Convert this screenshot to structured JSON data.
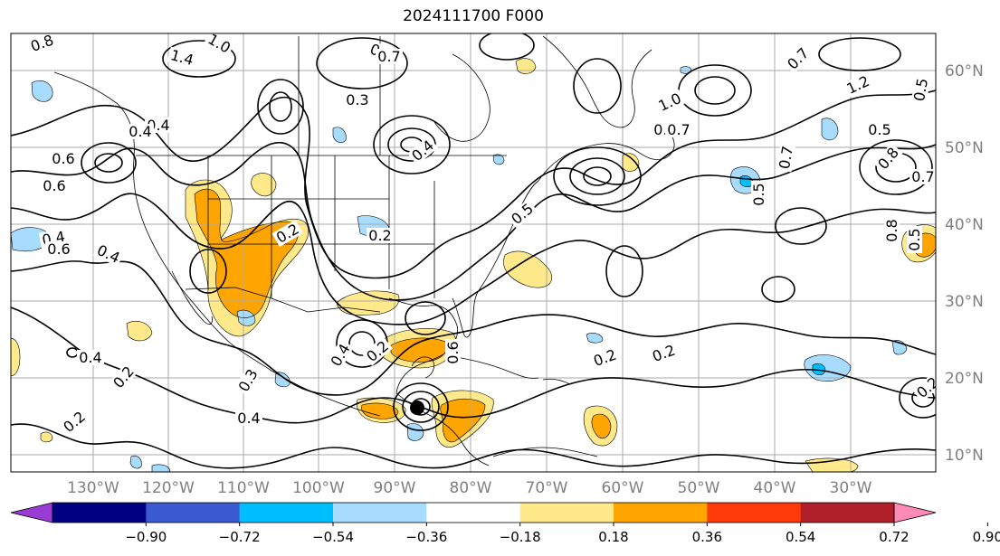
{
  "title": "2024111700 F000",
  "map": {
    "longitude_labels": [
      "130°W",
      "120°W",
      "110°W",
      "100°W",
      "90°W",
      "80°W",
      "70°W",
      "60°W",
      "50°W",
      "40°W",
      "30°W"
    ],
    "latitude_labels": [
      "60°N",
      "50°N",
      "40°N",
      "30°N",
      "20°N",
      "10°N"
    ],
    "contour_labels": [
      "0.8",
      "1.0",
      "0.6",
      "0.4",
      "1.4",
      "0.6",
      "0.7",
      "0.4",
      "0.6",
      "0.4",
      "0.2",
      "0.3",
      "0.4",
      "0.2",
      "0.4",
      "0.2",
      "0.2",
      "0.2",
      "0.2",
      "0.3",
      "1.0",
      "1.2",
      "0.7",
      "0.5",
      "0.5",
      "0.7",
      "0.8",
      "0.7",
      "0.5",
      "0.7",
      "0.8",
      "0.6",
      "0.4",
      "0.5",
      "0.6",
      "0.4",
      "0.4",
      "0.2",
      "0.2",
      "0.2",
      "0.5"
    ],
    "colors": {
      "coast": "#000000",
      "grid": "#aaaaaa",
      "contour": "#000000",
      "pos_light": "#ffe98a",
      "pos_orange": "#ffa500",
      "neg_light": "#a8dcff",
      "neg_blue": "#00bfff"
    }
  },
  "colorbar": {
    "tick_labels": [
      "−0.90",
      "−0.72",
      "−0.54",
      "−0.36",
      "−0.18",
      "0.18",
      "0.36",
      "0.54",
      "0.72",
      "0.90"
    ],
    "colors": [
      "#9a3cd4",
      "#000080",
      "#3a5bd0",
      "#00bfff",
      "#a8dcff",
      "#ffffff",
      "#ffe98a",
      "#ffa500",
      "#ff3a0a",
      "#b0202a",
      "#ff8ab5"
    ]
  }
}
